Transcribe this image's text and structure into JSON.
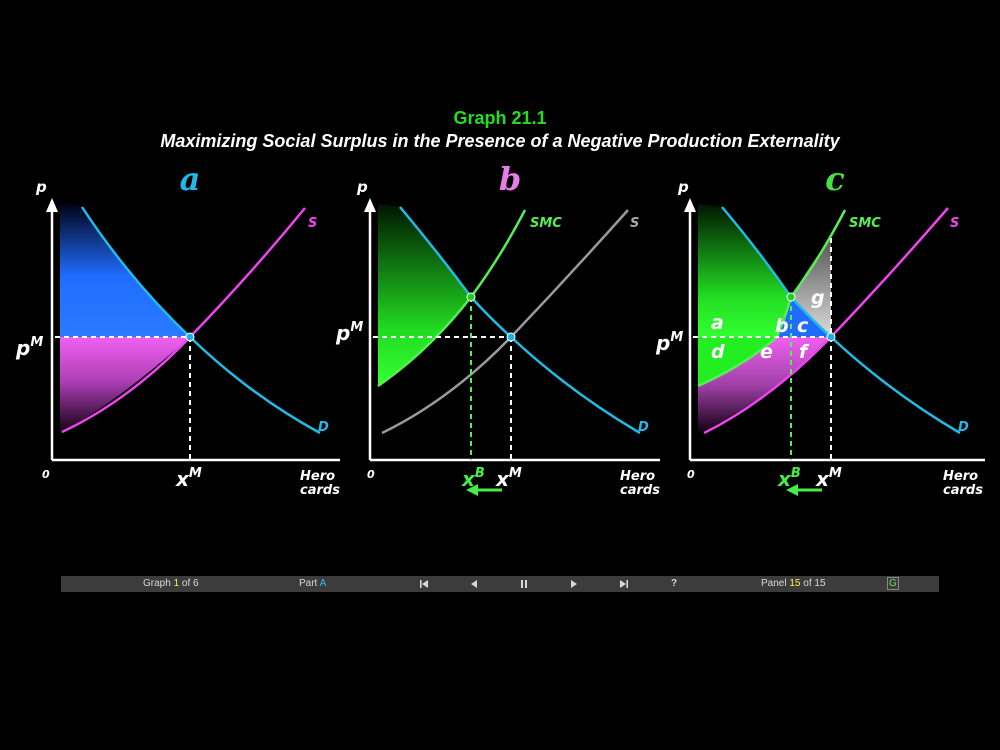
{
  "header": {
    "title": "Graph 21.1",
    "subtitle": "Maximizing Social Surplus in the Presence of a Negative Production Externality"
  },
  "colors": {
    "demand": "#22bbe6",
    "supply": "#ee44ee",
    "smc": "#55ee55",
    "s_gray": "#999999",
    "blue_area": "#1f6dff",
    "pink_area": "#ee55ee",
    "green_area": "#22ee22"
  },
  "axes": {
    "p": "p",
    "origin": "0",
    "x_line1": "Hero",
    "x_line2": "cards"
  },
  "price_label": {
    "base": "p",
    "sup": "M"
  },
  "xm_label": {
    "base": "x",
    "sup": "M"
  },
  "xb_label": {
    "base": "x",
    "sup": "B"
  },
  "curves": {
    "s": "S",
    "d": "D",
    "smc": "SMC"
  },
  "panels": {
    "a": {
      "label": "a",
      "label_color": "#22b8e8"
    },
    "b": {
      "label": "b",
      "label_color": "#e87ce8"
    },
    "c": {
      "label": "c",
      "label_color": "#44e044"
    }
  },
  "regions": {
    "a": "a",
    "b": "b",
    "c": "c",
    "d": "d",
    "e": "e",
    "f": "f",
    "g": "g"
  },
  "navbar": {
    "graph_prefix": "Graph ",
    "graph_num": "1",
    "graph_suffix": " of 6",
    "part_prefix": "Part ",
    "part": "A",
    "first_icon": "first-icon",
    "prev_icon": "prev-icon",
    "pause_icon": "pause-icon",
    "next_icon": "next-icon",
    "last_icon": "last-icon",
    "help": "?",
    "panel_prefix": "Panel ",
    "panel_num": "15",
    "panel_suffix": " of 15",
    "g": "G"
  }
}
